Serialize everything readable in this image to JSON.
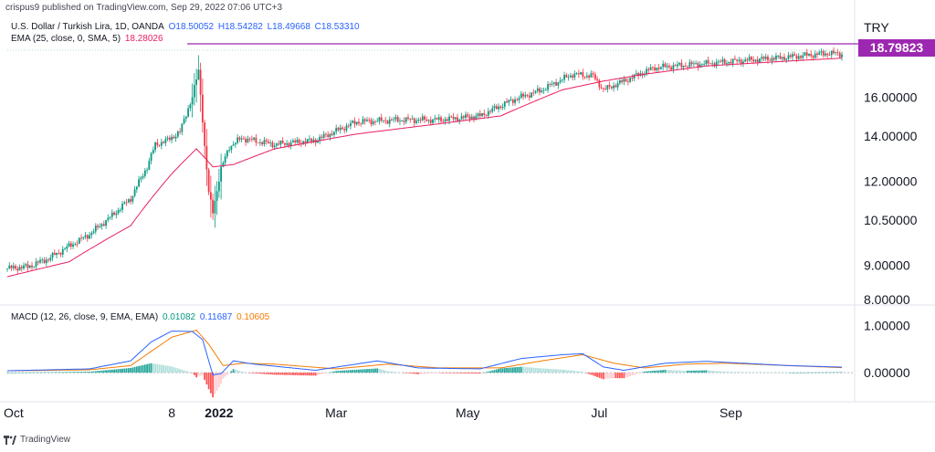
{
  "header": {
    "publisher": "crispus9 published on TradingView.com, Sep 29, 2022 07:06 UTC+3",
    "symbol": "U.S. Dollar / Turkish Lira, 1D, OANDA",
    "open": "O18.50052",
    "high": "H18.54282",
    "low": "L18.49668",
    "close": "C18.53310",
    "ema_label": "EMA (25, close, 0, SMA, 5)",
    "ema_value": "18.28026",
    "macd_label": "MACD (12, 26, close, 9, EMA, EMA)",
    "macd_hist": "0.01082",
    "macd_line": "0.11687",
    "macd_signal": "0.10605",
    "currency": "TRY",
    "last_price": "18.79823"
  },
  "footer": {
    "brand": "TradingView"
  },
  "colors": {
    "up": "#089981",
    "down": "#f23645",
    "ema": "#e91e63",
    "macd": "#2962ff",
    "signal": "#f57c00",
    "last_price": "#9c27b0"
  },
  "chart_data": {
    "type": "line",
    "subtype": "candlestick",
    "x_ticks": [
      "Oct",
      "8",
      "2022",
      "Mar",
      "May",
      "Jul",
      "Sep"
    ],
    "y_ticks": [
      "18.79823",
      "16.00000",
      "14.00000",
      "12.00000",
      "10.50000",
      "9.00000",
      "8.00000"
    ],
    "y_scale": "log",
    "ylim": [
      8.0,
      19.2
    ],
    "macd_y_ticks": [
      "1.00000",
      "0.00000"
    ],
    "macd_ylim": [
      -0.5,
      1.2
    ],
    "price_keypoints": [
      [
        0,
        8.9
      ],
      [
        10,
        8.95
      ],
      [
        20,
        9.2
      ],
      [
        30,
        9.6
      ],
      [
        40,
        10.0
      ],
      [
        50,
        10.6
      ],
      [
        60,
        11.3
      ],
      [
        68,
        12.6
      ],
      [
        72,
        13.6
      ],
      [
        78,
        13.8
      ],
      [
        84,
        14.2
      ],
      [
        90,
        16.0
      ],
      [
        93,
        17.5
      ],
      [
        96,
        13.5
      ],
      [
        98,
        11.5
      ],
      [
        100,
        10.8
      ],
      [
        104,
        12.5
      ],
      [
        108,
        13.5
      ],
      [
        114,
        13.9
      ],
      [
        130,
        13.6
      ],
      [
        150,
        13.8
      ],
      [
        170,
        14.7
      ],
      [
        190,
        14.8
      ],
      [
        210,
        14.8
      ],
      [
        230,
        15.0
      ],
      [
        245,
        15.8
      ],
      [
        260,
        16.4
      ],
      [
        275,
        17.3
      ],
      [
        285,
        17.2
      ],
      [
        290,
        16.4
      ],
      [
        298,
        16.8
      ],
      [
        315,
        17.7
      ],
      [
        340,
        17.95
      ],
      [
        360,
        18.15
      ],
      [
        380,
        18.35
      ],
      [
        400,
        18.6
      ],
      [
        406,
        18.53
      ]
    ],
    "ema_keypoints": [
      [
        0,
        8.65
      ],
      [
        30,
        9.1
      ],
      [
        60,
        10.3
      ],
      [
        80,
        12.3
      ],
      [
        92,
        13.4
      ],
      [
        100,
        12.6
      ],
      [
        110,
        12.7
      ],
      [
        130,
        13.4
      ],
      [
        170,
        14.1
      ],
      [
        210,
        14.6
      ],
      [
        240,
        15.0
      ],
      [
        270,
        16.4
      ],
      [
        290,
        16.9
      ],
      [
        310,
        17.3
      ],
      [
        340,
        17.8
      ],
      [
        380,
        18.1
      ],
      [
        406,
        18.28
      ]
    ],
    "macd_keypoints": [
      [
        0,
        0.04
      ],
      [
        40,
        0.08
      ],
      [
        60,
        0.25
      ],
      [
        70,
        0.65
      ],
      [
        80,
        0.88
      ],
      [
        90,
        0.87
      ],
      [
        95,
        0.7
      ],
      [
        100,
        -0.05
      ],
      [
        104,
        -0.02
      ],
      [
        110,
        0.25
      ],
      [
        120,
        0.18
      ],
      [
        150,
        0.05
      ],
      [
        180,
        0.25
      ],
      [
        200,
        0.1
      ],
      [
        230,
        0.08
      ],
      [
        250,
        0.3
      ],
      [
        270,
        0.38
      ],
      [
        280,
        0.4
      ],
      [
        290,
        0.12
      ],
      [
        300,
        0.05
      ],
      [
        320,
        0.2
      ],
      [
        340,
        0.24
      ],
      [
        380,
        0.15
      ],
      [
        406,
        0.117
      ]
    ],
    "signal_keypoints": [
      [
        0,
        0.04
      ],
      [
        40,
        0.06
      ],
      [
        60,
        0.15
      ],
      [
        70,
        0.45
      ],
      [
        80,
        0.75
      ],
      [
        92,
        0.9
      ],
      [
        98,
        0.6
      ],
      [
        105,
        0.15
      ],
      [
        115,
        0.2
      ],
      [
        130,
        0.18
      ],
      [
        160,
        0.08
      ],
      [
        185,
        0.18
      ],
      [
        210,
        0.1
      ],
      [
        240,
        0.1
      ],
      [
        260,
        0.25
      ],
      [
        280,
        0.38
      ],
      [
        295,
        0.2
      ],
      [
        310,
        0.1
      ],
      [
        330,
        0.18
      ],
      [
        350,
        0.2
      ],
      [
        380,
        0.15
      ],
      [
        406,
        0.106
      ]
    ]
  }
}
